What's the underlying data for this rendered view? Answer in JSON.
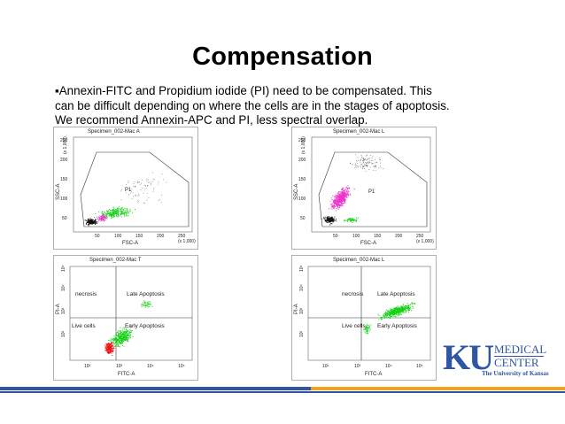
{
  "slide": {
    "title": "Compensation",
    "bullet_marker": "▪",
    "lines": [
      "Annexin-FITC  and Propidium iodide (PI) need to be compensated.  This",
      "can be difficult depending on where the cells are in the stages of apoptosis.",
      "We recommend Annexin-APC and PI, less spectral overlap."
    ]
  },
  "plots": {
    "top_left": {
      "title": "Specimen_002-Mac A",
      "xlabel": "FSC-A",
      "ylabel": "SSC-A",
      "x_ticks": [
        "50",
        "100",
        "150",
        "200",
        "250"
      ],
      "x_unit": "(x 1,000)",
      "y_ticks": [
        "50",
        "100",
        "150",
        "200",
        "250"
      ],
      "y_unit": "(x 1,000)",
      "gate_label": "P1"
    },
    "top_right": {
      "title": "Specimen_002-Mac L",
      "xlabel": "FSC-A",
      "ylabel": "SSC-A",
      "x_ticks": [
        "50",
        "100",
        "150",
        "200",
        "250"
      ],
      "x_unit": "(x 1,000)",
      "y_ticks": [
        "50",
        "100",
        "150",
        "200",
        "250"
      ],
      "y_unit": "(x 1,000)",
      "gate_label": "P1"
    },
    "bottom_left": {
      "title": "Specimen_002-Mac T",
      "xlabel": "FITC-A",
      "ylabel": "PI-A",
      "x_ticks": [
        "10²",
        "10³",
        "10⁴",
        "10⁵"
      ],
      "y_ticks": [
        "10²",
        "10³",
        "10⁴",
        "10⁵"
      ],
      "q_ul": "necrosis",
      "q_ur": "Late Apoptosis",
      "q_ll": "Live cells",
      "q_lr": "Early Apoptosis"
    },
    "bottom_right": {
      "title": "Specimen_002-Mac L",
      "xlabel": "FITC-A",
      "ylabel": "PI-A",
      "x_ticks": [
        "10²",
        "10³",
        "10⁴",
        "10⁵"
      ],
      "y_ticks": [
        "10²",
        "10³",
        "10⁴",
        "10⁵"
      ],
      "q_ul": "necrosis",
      "q_ur": "Late Apoptosis",
      "q_ll": "Live cells",
      "q_lr": "Early Apoptosis"
    }
  },
  "logo": {
    "ku": "KU",
    "medical": "MEDICAL",
    "center": "CENTER",
    "university": "The University of Kansas"
  },
  "colors": {
    "green": "#17d017",
    "magenta": "#ee33cc",
    "red": "#ee1111",
    "black": "#111111",
    "brand_blue": "#2f55a4",
    "brand_gold": "#f2a31b"
  }
}
